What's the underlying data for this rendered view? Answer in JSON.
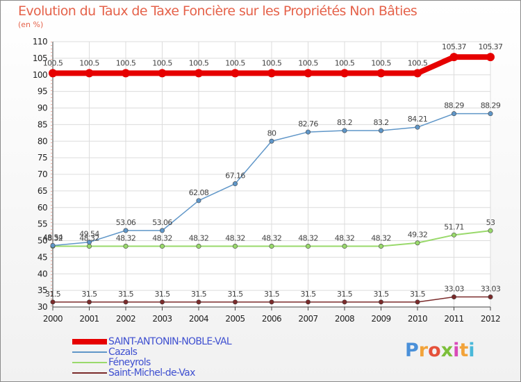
{
  "title": "Evolution du Taux de Taxe Foncière sur les Propriétés Non Bâties",
  "unit": "(en %)",
  "logo": {
    "text": "Proxiti",
    "letters": [
      "P",
      "r",
      "o",
      "x",
      "i",
      "t",
      "i"
    ],
    "colors": [
      "#4a90d9",
      "#f2a33a",
      "#e5513a",
      "#7cbf3a",
      "#d94ab8",
      "#f2a33a",
      "#4ab8d9"
    ]
  },
  "chart_data": {
    "type": "line",
    "title": "Evolution du Taux de Taxe Foncière sur les Propriétés Non Bâties",
    "ylabel": "(en %)",
    "xlabel": "",
    "ylim": [
      30,
      110
    ],
    "yticks": [
      30,
      35,
      40,
      45,
      50,
      55,
      60,
      65,
      70,
      75,
      80,
      85,
      90,
      95,
      100,
      105,
      110
    ],
    "categories": [
      "2000",
      "2001",
      "2002",
      "2003",
      "2004",
      "2005",
      "2006",
      "2007",
      "2008",
      "2009",
      "2010",
      "2011",
      "2012"
    ],
    "grid": true,
    "legend_position": "bottom-left",
    "series": [
      {
        "name": "SAINT-ANTONIN-NOBLE-VAL",
        "color": "#e60000",
        "width": 8,
        "values": [
          100.5,
          100.5,
          100.5,
          100.5,
          100.5,
          100.5,
          100.5,
          100.5,
          100.5,
          100.5,
          100.5,
          105.37,
          105.37
        ],
        "labels": [
          "100.5",
          "100.5",
          "100.5",
          "100.5",
          "100.5",
          "100.5",
          "100.5",
          "100.5",
          "100.5",
          "100.5",
          "100.5",
          "105.37",
          "105.37"
        ]
      },
      {
        "name": "Cazals",
        "color": "#5f96c8",
        "width": 1.5,
        "values": [
          48.54,
          49.54,
          53.06,
          53.06,
          62.08,
          67.16,
          80,
          82.76,
          83.2,
          83.2,
          84.21,
          88.29,
          88.29
        ],
        "labels": [
          "48.54",
          "49.54",
          "53.06",
          "53.06",
          "62.08",
          "67.16",
          "80",
          "82.76",
          "83.2",
          "83.2",
          "84.21",
          "88.29",
          "88.29"
        ]
      },
      {
        "name": "Féneyrols",
        "color": "#99d96b",
        "width": 2,
        "values": [
          48.32,
          48.32,
          48.32,
          48.32,
          48.32,
          48.32,
          48.32,
          48.32,
          48.32,
          48.32,
          49.32,
          51.71,
          53
        ],
        "labels": [
          "48.32",
          "48.32",
          "48.32",
          "48.32",
          "48.32",
          "48.32",
          "48.32",
          "48.32",
          "48.32",
          "48.32",
          "49.32",
          "51.71",
          "53"
        ]
      },
      {
        "name": "Saint-Michel-de-Vax",
        "color": "#7a2a2a",
        "width": 1.5,
        "values": [
          31.5,
          31.5,
          31.5,
          31.5,
          31.5,
          31.5,
          31.5,
          31.5,
          31.5,
          31.5,
          31.5,
          33.03,
          33.03
        ],
        "labels": [
          "31.5",
          "31.5",
          "31.5",
          "31.5",
          "31.5",
          "31.5",
          "31.5",
          "31.5",
          "31.5",
          "31.5",
          "31.5",
          "33.03",
          "33.03"
        ]
      }
    ]
  }
}
